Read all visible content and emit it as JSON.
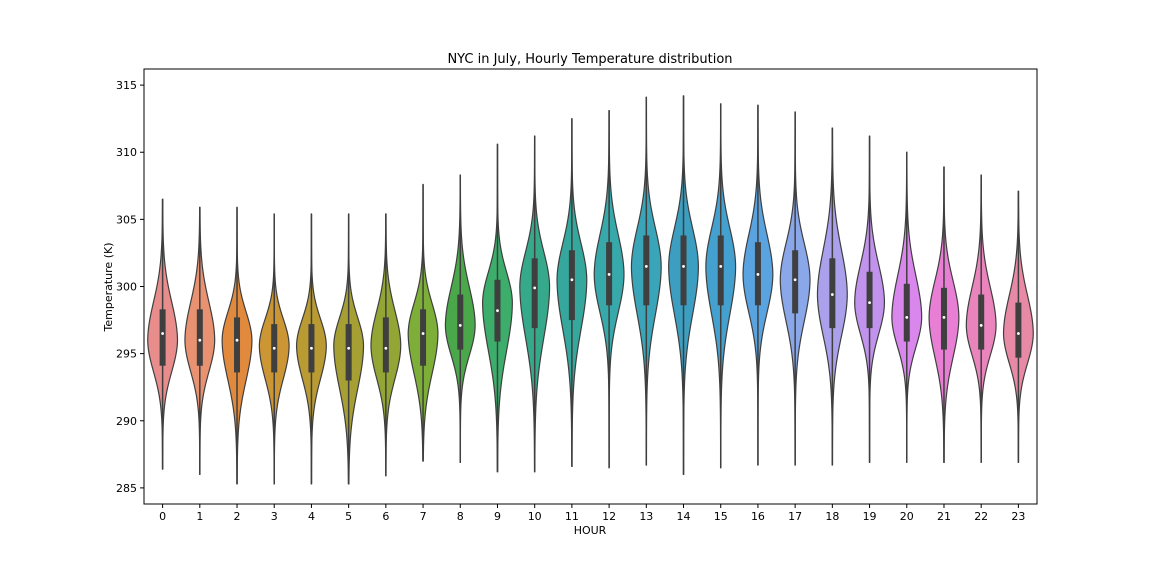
{
  "chart_data": {
    "type": "violin",
    "title": "NYC in July, Hourly Temperature distribution",
    "xlabel": "HOUR",
    "ylabel": "Temperature (K)",
    "ylim": [
      283.8,
      316.2
    ],
    "yticks": [
      285,
      290,
      295,
      300,
      305,
      310,
      315
    ],
    "grid": false,
    "legend": "none",
    "categories": [
      "0",
      "1",
      "2",
      "3",
      "4",
      "5",
      "6",
      "7",
      "8",
      "9",
      "10",
      "11",
      "12",
      "13",
      "14",
      "15",
      "16",
      "17",
      "18",
      "19",
      "20",
      "21",
      "22",
      "23"
    ],
    "colors": [
      "#e88c8c",
      "#e99272",
      "#e18a3e",
      "#cd9634",
      "#b99a33",
      "#a69f33",
      "#93a534",
      "#7daf38",
      "#4aa84a",
      "#3cad6a",
      "#37a98b",
      "#35a79c",
      "#38a9ab",
      "#3aa5b8",
      "#3c9fc1",
      "#43a0cf",
      "#5aa3e1",
      "#8aa7ea",
      "#aaa0eb",
      "#c293ec",
      "#d987ec",
      "#e97fd5",
      "#e985bc",
      "#e889a6"
    ],
    "violins": [
      {
        "min": 286.4,
        "q1": 294.1,
        "median": 296.5,
        "q3": 298.3,
        "max": 306.5,
        "mode": 296.0
      },
      {
        "min": 286.0,
        "q1": 294.1,
        "median": 296.0,
        "q3": 298.3,
        "max": 305.9,
        "mode": 296.0
      },
      {
        "min": 285.3,
        "q1": 293.6,
        "median": 296.0,
        "q3": 297.7,
        "max": 305.9,
        "mode": 296.0
      },
      {
        "min": 285.3,
        "q1": 293.6,
        "median": 295.4,
        "q3": 297.2,
        "max": 305.4,
        "mode": 295.6
      },
      {
        "min": 285.3,
        "q1": 293.6,
        "median": 295.4,
        "q3": 297.2,
        "max": 305.4,
        "mode": 295.6
      },
      {
        "min": 285.3,
        "q1": 293.0,
        "median": 295.4,
        "q3": 297.2,
        "max": 305.4,
        "mode": 295.6
      },
      {
        "min": 285.9,
        "q1": 293.6,
        "median": 295.4,
        "q3": 297.7,
        "max": 305.4,
        "mode": 295.6
      },
      {
        "min": 287.0,
        "q1": 294.1,
        "median": 296.5,
        "q3": 298.3,
        "max": 307.6,
        "mode": 296.5
      },
      {
        "min": 286.9,
        "q1": 295.3,
        "median": 297.1,
        "q3": 299.4,
        "max": 308.3,
        "mode": 297.1
      },
      {
        "min": 286.2,
        "q1": 295.9,
        "median": 298.2,
        "q3": 300.5,
        "max": 310.6,
        "mode": 298.8
      },
      {
        "min": 286.2,
        "q1": 296.9,
        "median": 299.9,
        "q3": 302.1,
        "max": 311.2,
        "mode": 300.0
      },
      {
        "min": 286.6,
        "q1": 297.5,
        "median": 300.5,
        "q3": 302.7,
        "max": 312.5,
        "mode": 300.5
      },
      {
        "min": 286.5,
        "q1": 298.6,
        "median": 300.9,
        "q3": 303.3,
        "max": 313.1,
        "mode": 300.9
      },
      {
        "min": 286.7,
        "q1": 298.6,
        "median": 301.5,
        "q3": 303.8,
        "max": 314.1,
        "mode": 301.5
      },
      {
        "min": 286.0,
        "q1": 298.6,
        "median": 301.5,
        "q3": 303.8,
        "max": 314.2,
        "mode": 301.5
      },
      {
        "min": 286.5,
        "q1": 298.6,
        "median": 301.5,
        "q3": 303.8,
        "max": 313.6,
        "mode": 301.5
      },
      {
        "min": 286.7,
        "q1": 298.6,
        "median": 300.9,
        "q3": 303.3,
        "max": 313.5,
        "mode": 300.9
      },
      {
        "min": 286.7,
        "q1": 298.0,
        "median": 300.5,
        "q3": 302.7,
        "max": 313.0,
        "mode": 300.5
      },
      {
        "min": 286.7,
        "q1": 296.9,
        "median": 299.4,
        "q3": 302.1,
        "max": 311.8,
        "mode": 299.4
      },
      {
        "min": 286.9,
        "q1": 296.9,
        "median": 298.8,
        "q3": 301.1,
        "max": 311.2,
        "mode": 298.8
      },
      {
        "min": 286.9,
        "q1": 295.9,
        "median": 297.7,
        "q3": 300.2,
        "max": 310.0,
        "mode": 297.7
      },
      {
        "min": 286.9,
        "q1": 295.3,
        "median": 297.7,
        "q3": 299.9,
        "max": 308.9,
        "mode": 297.7
      },
      {
        "min": 286.9,
        "q1": 295.3,
        "median": 297.1,
        "q3": 299.4,
        "max": 308.3,
        "mode": 297.1
      },
      {
        "min": 286.9,
        "q1": 294.7,
        "median": 296.5,
        "q3": 298.8,
        "max": 307.1,
        "mode": 296.5
      }
    ]
  }
}
